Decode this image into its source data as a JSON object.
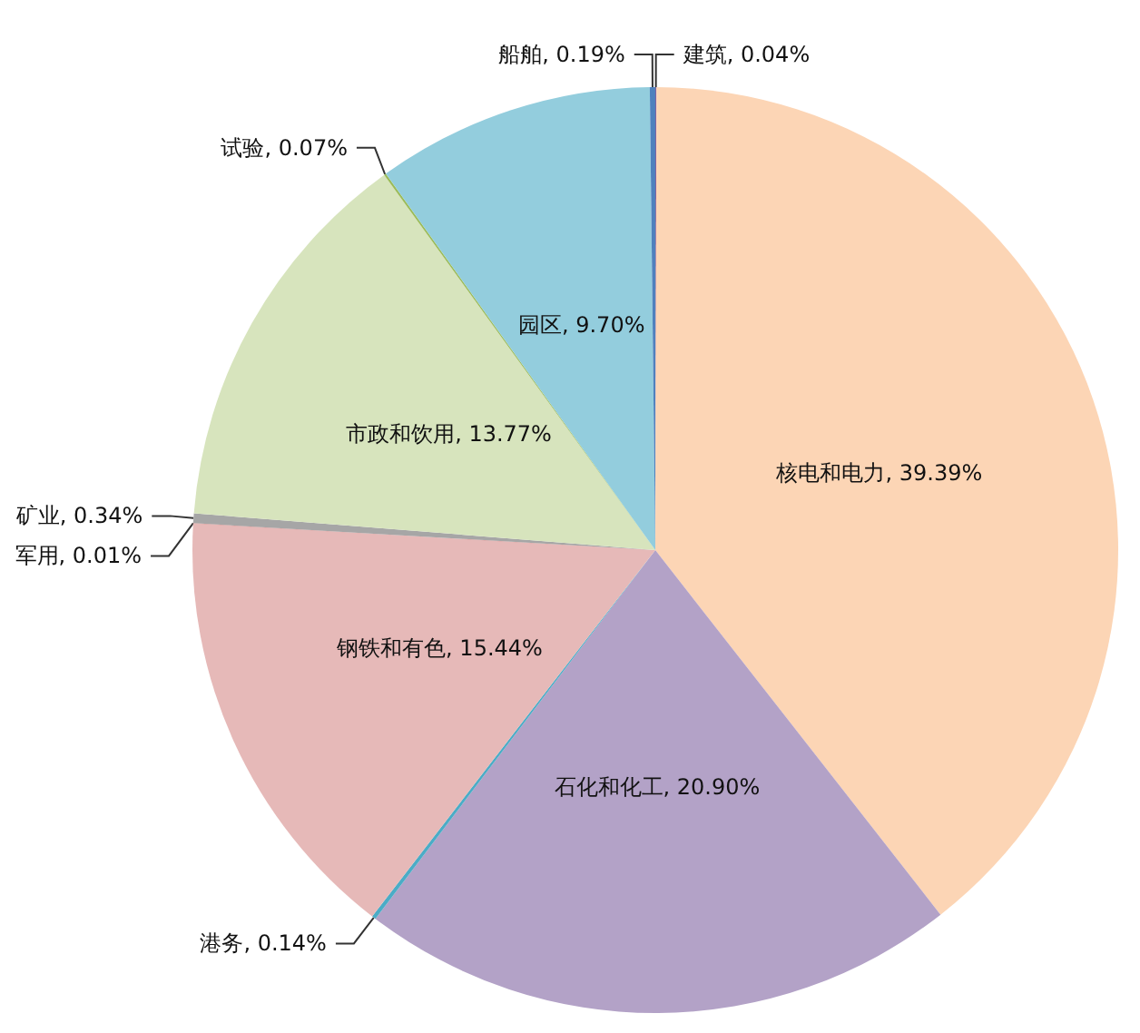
{
  "chart_data": {
    "type": "pie",
    "categories": [
      "建筑",
      "核电和电力",
      "石化和化工",
      "港务",
      "钢铁和有色",
      "军用",
      "矿业",
      "市政和饮用",
      "试验",
      "园区",
      "船舶"
    ],
    "values": [
      0.04,
      39.39,
      20.9,
      0.14,
      15.44,
      0.01,
      0.34,
      13.77,
      0.07,
      9.7,
      0.19
    ],
    "value_labels": [
      "0.04%",
      "39.39%",
      "20.90%",
      "0.14%",
      "15.44%",
      "0.01%",
      "0.34%",
      "13.77%",
      "0.07%",
      "9.70%",
      "0.19%"
    ],
    "colors": [
      "#8064a2",
      "#fcd5b5",
      "#b3a2c7",
      "#4bacc6",
      "#e6b9b8",
      "#c0504d",
      "#a6a6a6",
      "#d7e4bd",
      "#9bbb59",
      "#93cddd",
      "#4f81bd"
    ],
    "legend": false
  }
}
